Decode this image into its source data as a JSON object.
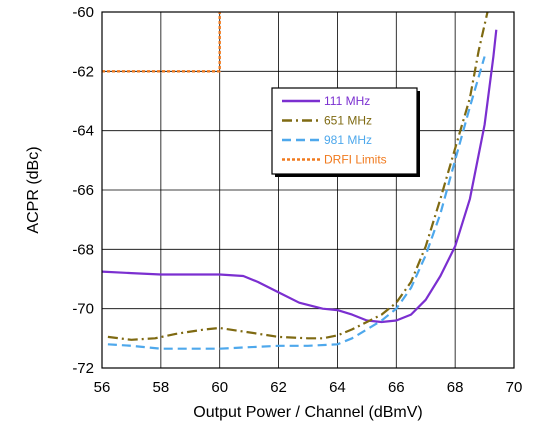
{
  "chart_data": {
    "type": "line",
    "title": "",
    "xlabel": "Output Power / Channel (dBmV)",
    "ylabel": "ACPR (dBc)",
    "xlim": [
      56,
      70
    ],
    "ylim": [
      -72,
      -60
    ],
    "xticks": [
      "56",
      "58",
      "60",
      "62",
      "64",
      "66",
      "68",
      "70"
    ],
    "yticks": [
      "-60",
      "-62",
      "-64",
      "-66",
      "-68",
      "-70",
      "-72"
    ],
    "grid": true,
    "legend_position": "upper-center",
    "series": [
      {
        "name": "111 MHz",
        "color": "#7b2fd0",
        "style": "solid",
        "points": [
          [
            56,
            -68.75
          ],
          [
            57,
            -68.8
          ],
          [
            58,
            -68.85
          ],
          [
            59,
            -68.85
          ],
          [
            60,
            -68.85
          ],
          [
            60.8,
            -68.9
          ],
          [
            61.3,
            -69.1
          ],
          [
            62,
            -69.45
          ],
          [
            62.7,
            -69.8
          ],
          [
            63.5,
            -70.0
          ],
          [
            64.0,
            -70.05
          ],
          [
            64.5,
            -70.2
          ],
          [
            65.0,
            -70.4
          ],
          [
            65.5,
            -70.45
          ],
          [
            66.0,
            -70.4
          ],
          [
            66.5,
            -70.2
          ],
          [
            67.0,
            -69.7
          ],
          [
            67.5,
            -68.9
          ],
          [
            68.0,
            -67.9
          ],
          [
            68.5,
            -66.3
          ],
          [
            69.0,
            -63.8
          ],
          [
            69.3,
            -61.5
          ],
          [
            69.4,
            -60.6
          ]
        ]
      },
      {
        "name": "651 MHz",
        "color": "#7f6a12",
        "style": "dashdot",
        "points": [
          [
            56.2,
            -70.95
          ],
          [
            57.0,
            -71.05
          ],
          [
            57.8,
            -71.0
          ],
          [
            58.5,
            -70.85
          ],
          [
            59.5,
            -70.7
          ],
          [
            60.0,
            -70.65
          ],
          [
            61.0,
            -70.8
          ],
          [
            62.0,
            -70.95
          ],
          [
            63.0,
            -71.0
          ],
          [
            63.5,
            -71.0
          ],
          [
            64.0,
            -70.9
          ],
          [
            64.5,
            -70.7
          ],
          [
            65.0,
            -70.45
          ],
          [
            65.5,
            -70.2
          ],
          [
            66.0,
            -69.8
          ],
          [
            66.5,
            -69.1
          ],
          [
            67.0,
            -67.9
          ],
          [
            67.5,
            -66.3
          ],
          [
            68.0,
            -64.6
          ],
          [
            68.5,
            -62.9
          ],
          [
            68.8,
            -61.3
          ],
          [
            69.1,
            -60.0
          ]
        ]
      },
      {
        "name": "981 MHz",
        "color": "#4ea8ec",
        "style": "dashed",
        "points": [
          [
            56.2,
            -71.2
          ],
          [
            57.0,
            -71.25
          ],
          [
            58.0,
            -71.35
          ],
          [
            59.0,
            -71.35
          ],
          [
            60.0,
            -71.35
          ],
          [
            61.0,
            -71.3
          ],
          [
            62.0,
            -71.25
          ],
          [
            63.0,
            -71.25
          ],
          [
            64.0,
            -71.2
          ],
          [
            64.5,
            -71.0
          ],
          [
            65.0,
            -70.7
          ],
          [
            65.5,
            -70.4
          ],
          [
            66.0,
            -70.0
          ],
          [
            66.5,
            -69.3
          ],
          [
            67.0,
            -68.2
          ],
          [
            67.5,
            -66.8
          ],
          [
            68.0,
            -65.0
          ],
          [
            68.5,
            -63.2
          ],
          [
            69.0,
            -61.5
          ]
        ]
      },
      {
        "name": "DRFI Limits",
        "color": "#f07a1e",
        "style": "dotted",
        "points": [
          [
            56,
            -62
          ],
          [
            60,
            -62
          ],
          [
            60,
            -60
          ]
        ]
      }
    ]
  }
}
